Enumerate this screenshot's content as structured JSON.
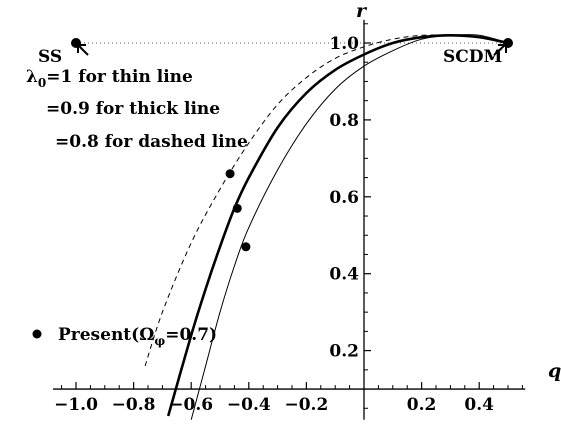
{
  "chart_data": {
    "type": "line",
    "title": "",
    "xlabel": "q",
    "ylabel": "r",
    "xlim": [
      -1.08,
      0.56
    ],
    "ylim": [
      0.02,
      1.06
    ],
    "x_ticks": [
      -1.0,
      -0.8,
      -0.6,
      -0.4,
      -0.2,
      0.2,
      0.4
    ],
    "x_tick_labels": [
      "−1.0",
      "−0.8",
      "−0.6",
      "−0.4",
      "−0.2",
      "0.2",
      "0.4"
    ],
    "y_ticks": [
      0.2,
      0.4,
      0.6,
      0.8,
      1.0
    ],
    "y_tick_labels": [
      "0.2",
      "0.4",
      "0.6",
      "0.8",
      "1.0"
    ],
    "reference_line": {
      "y": 1.0,
      "x_range": [
        -1.0,
        0.5
      ],
      "style": "dotted"
    },
    "series": [
      {
        "style": "thin",
        "points": [
          [
            -0.6,
            0.02
          ],
          [
            -0.55,
            0.16
          ],
          [
            -0.5,
            0.3
          ],
          [
            -0.45,
            0.42
          ],
          [
            -0.4,
            0.52
          ],
          [
            -0.3,
            0.67
          ],
          [
            -0.2,
            0.79
          ],
          [
            -0.1,
            0.88
          ],
          [
            0.0,
            0.94
          ],
          [
            0.1,
            0.98
          ],
          [
            0.2,
            1.01
          ],
          [
            0.3,
            1.02
          ],
          [
            0.4,
            1.02
          ],
          [
            0.5,
            1.0
          ]
        ]
      },
      {
        "style": "thick",
        "points": [
          [
            -0.68,
            0.03
          ],
          [
            -0.6,
            0.24
          ],
          [
            -0.55,
            0.36
          ],
          [
            -0.5,
            0.47
          ],
          [
            -0.45,
            0.57
          ],
          [
            -0.4,
            0.65
          ],
          [
            -0.3,
            0.78
          ],
          [
            -0.2,
            0.87
          ],
          [
            -0.1,
            0.93
          ],
          [
            0.0,
            0.97
          ],
          [
            0.1,
            1.0
          ],
          [
            0.2,
            1.015
          ],
          [
            0.3,
            1.02
          ],
          [
            0.4,
            1.015
          ],
          [
            0.5,
            1.0
          ]
        ]
      },
      {
        "style": "dashed",
        "points": [
          [
            -0.76,
            0.16
          ],
          [
            -0.7,
            0.3
          ],
          [
            -0.6,
            0.48
          ],
          [
            -0.5,
            0.62
          ],
          [
            -0.4,
            0.74
          ],
          [
            -0.3,
            0.84
          ],
          [
            -0.2,
            0.91
          ],
          [
            -0.1,
            0.96
          ],
          [
            0.0,
            0.99
          ],
          [
            0.1,
            1.01
          ],
          [
            0.2,
            1.02
          ],
          [
            0.3,
            1.02
          ],
          [
            0.4,
            1.015
          ],
          [
            0.5,
            1.0
          ]
        ]
      }
    ],
    "present_points": [
      [
        -0.465,
        0.66
      ],
      [
        -0.44,
        0.57
      ],
      [
        -0.41,
        0.47
      ]
    ],
    "endpoints": [
      {
        "name": "SS",
        "x": -1.0,
        "y": 1.0
      },
      {
        "name": "SCDM",
        "x": 0.5,
        "y": 1.0
      }
    ],
    "annotations": {
      "lambda_symbol": "λ",
      "lambda_sub": "0",
      "line1_rest": "=1 for thin line",
      "line2": "=0.9 for thick line",
      "line3": "=0.8 for dashed line",
      "present_label": "Present(Ω",
      "present_sub": "φ",
      "present_rest": "=0.7)"
    }
  }
}
